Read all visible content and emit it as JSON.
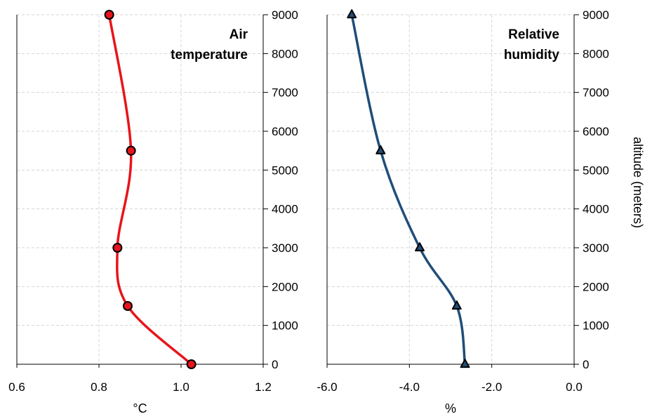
{
  "chart_data": [
    {
      "type": "line",
      "title": "Air\ntemperature",
      "xlabel": "°C",
      "ylabel": "",
      "xlim": [
        0.6,
        1.2
      ],
      "ylim": [
        0,
        9000
      ],
      "x_ticks": [
        "0.6",
        "0.8",
        "1.0",
        "1.2"
      ],
      "y_ticks": [
        "0",
        "1000",
        "2000",
        "3000",
        "4000",
        "5000",
        "6000",
        "7000",
        "8000",
        "9000"
      ],
      "grid": true,
      "marker": "circle",
      "color": "#e8141b",
      "marker_fill": "#e8141b",
      "series": [
        {
          "points": [
            {
              "x": 1.025,
              "y": 0
            },
            {
              "x": 0.87,
              "y": 1500
            },
            {
              "x": 0.845,
              "y": 3000
            },
            {
              "x": 0.878,
              "y": 5500
            },
            {
              "x": 0.825,
              "y": 9000
            }
          ]
        }
      ]
    },
    {
      "type": "line",
      "title": "Relative\nhumidity",
      "xlabel": "%",
      "ylabel": "altitude (meters)",
      "xlim": [
        -6.0,
        0.0
      ],
      "ylim": [
        0,
        9000
      ],
      "x_ticks": [
        "-6.0",
        "-4.0",
        "-2.0",
        "0.0"
      ],
      "y_ticks": [
        "0",
        "1000",
        "2000",
        "3000",
        "4000",
        "5000",
        "6000",
        "7000",
        "8000",
        "9000"
      ],
      "grid": true,
      "marker": "triangle",
      "color": "#1f4e79",
      "marker_fill": "#1f4e79",
      "series": [
        {
          "points": [
            {
              "x": -2.65,
              "y": 0
            },
            {
              "x": -2.85,
              "y": 1500
            },
            {
              "x": -3.75,
              "y": 3000
            },
            {
              "x": -4.7,
              "y": 5500
            },
            {
              "x": -5.4,
              "y": 9000
            }
          ]
        }
      ]
    }
  ]
}
